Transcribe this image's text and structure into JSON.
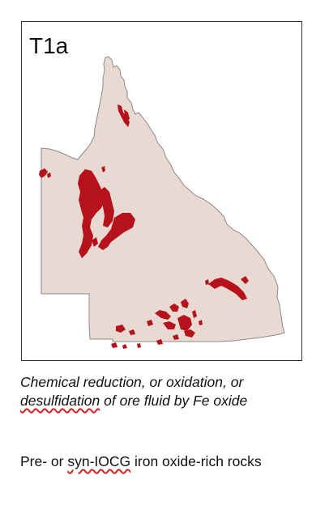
{
  "map": {
    "label": "T1a",
    "land_color": "#e9d9d3",
    "outline_color": "#8a8a8a",
    "highlight_color": "#b5121b"
  },
  "captions": {
    "line1_part1": "Chemical reduction, or oxidation, or",
    "line1_word": "desulfidation",
    "line1_part2": " of ore fluid by Fe oxide",
    "line2_part1": "Pre- or ",
    "line2_word": "syn-IOCG",
    "line2_part2": " iron oxide-rich rocks"
  }
}
